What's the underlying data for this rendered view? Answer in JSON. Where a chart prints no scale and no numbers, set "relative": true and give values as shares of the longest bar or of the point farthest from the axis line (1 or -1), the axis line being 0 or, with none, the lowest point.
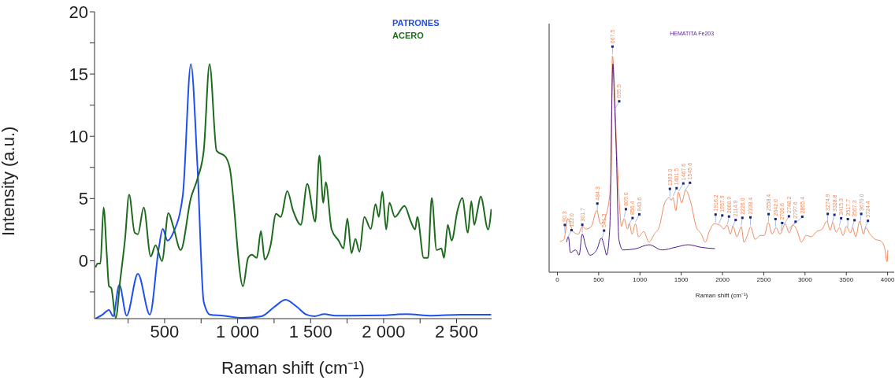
{
  "chart_data": [
    {
      "type": "line",
      "xlabel": "Raman shift (cm⁻¹)",
      "ylabel": "Intensity (a.u.)",
      "xlim": [
        20,
        2740
      ],
      "ylim": [
        -4.65,
        20
      ],
      "xticks": [
        {
          "value": 250,
          "label": null
        },
        500,
        {
          "value": 750,
          "label": null
        },
        {
          "value": 1000,
          "label": "1 000"
        },
        {
          "value": 1250,
          "label": null
        },
        {
          "value": 1500,
          "label": "1 500"
        },
        {
          "value": 1750,
          "label": null
        },
        {
          "value": 2000,
          "label": "2 000"
        },
        {
          "value": 2250,
          "label": null
        },
        {
          "value": 2500,
          "label": "2 500"
        }
      ],
      "yticks": [
        {
          "value": -2.5,
          "label": null
        },
        0,
        {
          "value": 2.5,
          "label": null
        },
        5,
        {
          "value": 7.5,
          "label": null
        },
        10,
        {
          "value": 12.5,
          "label": null
        },
        15,
        {
          "value": 17.5,
          "label": null
        },
        20
      ],
      "legend": "top right",
      "grid": false,
      "series": [
        {
          "name": "PATRONES",
          "color": "#1f4ff0",
          "x": [
            27,
            75,
            119,
            147,
            190,
            240,
            317,
            399,
            460,
            487,
            520,
            559,
            625,
            680,
            724,
            768,
            812,
            900,
            1032,
            1164,
            1252,
            1329,
            1406,
            1472,
            1527,
            1593,
            1670,
            2000,
            2154,
            2330,
            2528,
            2737
          ],
          "values": [
            -4.64,
            -4.33,
            -3.95,
            -4.46,
            -1.93,
            -4.41,
            -1.04,
            -4.33,
            1.0,
            2.56,
            1.62,
            2.25,
            5.3,
            15.8,
            7.8,
            -3.3,
            -4.33,
            -4.41,
            -4.59,
            -4.46,
            -3.7,
            -3.14,
            -3.7,
            -4.33,
            -4.46,
            -4.28,
            -4.41,
            -4.38,
            -4.28,
            -4.41,
            -4.33,
            -4.33
          ]
        },
        {
          "name": "ACERO",
          "color": "#1e6b1e",
          "x": [
            27,
            42,
            60,
            82,
            104,
            119,
            134,
            165,
            196,
            229,
            257,
            295,
            317,
            357,
            405,
            438,
            482,
            526,
            559,
            610,
            680,
            724,
            768,
            808,
            856,
            918,
            944,
            1037,
            1072,
            1098,
            1131,
            1160,
            1186,
            1226,
            1263,
            1296,
            1340,
            1380,
            1433,
            1477,
            1532,
            1560,
            1587,
            1604,
            1644,
            1692,
            1725,
            1752,
            1780,
            1807,
            1835,
            1868,
            1912,
            1945,
            1967,
            1992,
            2018,
            2040,
            2077,
            2143,
            2187,
            2216,
            2231,
            2275,
            2304,
            2330,
            2363,
            2396,
            2414,
            2440,
            2466,
            2506,
            2539,
            2577,
            2601,
            2621,
            2643,
            2665,
            2716,
            2738
          ],
          "values": [
            -0.53,
            -0.23,
            -0.23,
            4.28,
            0.48,
            -2.05,
            -2.18,
            -4.59,
            -1.55,
            1.75,
            5.3,
            2.25,
            2.13,
            4.28,
            0.35,
            1.24,
            -0.03,
            3.83,
            2.76,
            0.86,
            5.04,
            6.56,
            8.84,
            15.8,
            8.84,
            8.34,
            7.58,
            -2.05,
            0.23,
            0.48,
            0.23,
            2.38,
            0.1,
            1.24,
            3.78,
            3.52,
            5.6,
            4.03,
            2.89,
            6.18,
            3.14,
            8.46,
            4.66,
            6.31,
            2.51,
            1.62,
            0.99,
            3.4,
            0.61,
            1.75,
            0.73,
            3.52,
            2.56,
            4.54,
            3.52,
            5.55,
            2.51,
            4.66,
            3.52,
            4.41,
            3.14,
            2.51,
            3.52,
            0.23,
            0.23,
            5.04,
            0.86,
            0.99,
            0.23,
            2.89,
            1.62,
            4.03,
            5.04,
            2.25,
            4.79,
            2.89,
            4.03,
            5.17,
            2.51,
            4.15
          ]
        }
      ]
    },
    {
      "type": "line",
      "xlabel": "Raman shift (cm⁻¹)",
      "relative": true,
      "tick_labels": "x",
      "xlim": [
        -100,
        4080
      ],
      "xticks": [
        0,
        500,
        1000,
        1500,
        2000,
        2500,
        3000,
        3500,
        4000
      ],
      "legend": "top",
      "grid": false,
      "series": [
        {
          "color": "#f08a5d",
          "x": [
            32,
            79,
            127,
            190,
            254,
            301,
            349,
            412,
            476,
            523,
            587,
            650,
            666,
            729,
            777,
            808,
            850,
            872,
            904,
            945,
            983,
            1046,
            1110,
            1173,
            1236,
            1300,
            1357,
            1379,
            1401,
            1436,
            1465,
            1506,
            1553,
            1617,
            1680,
            1744,
            1791,
            1839,
            1902,
            1968,
            2016,
            2057,
            2095,
            2127,
            2174,
            2228,
            2260,
            2301,
            2339,
            2396,
            2459,
            2506,
            2554,
            2601,
            2649,
            2696,
            2760,
            2807,
            2855,
            2902,
            2956,
            3013,
            3076,
            3139,
            3203,
            3266,
            3304,
            3336,
            3377,
            3418,
            3462,
            3500,
            3551,
            3576,
            3614,
            3662,
            3709,
            3734,
            3788,
            3852,
            3915,
            3962,
            3994,
            4003
          ],
          "values": [
            0.142,
            0.152,
            0.248,
            0.188,
            0.176,
            0.212,
            0.2,
            0.212,
            0.285,
            0.224,
            0.261,
            0.43,
            1.0,
            0.479,
            0.212,
            0.248,
            0.2,
            0.224,
            0.176,
            0.224,
            0.164,
            0.188,
            0.139,
            0.176,
            0.212,
            0.321,
            0.345,
            0.333,
            0.345,
            0.285,
            0.37,
            0.321,
            0.379,
            0.321,
            0.212,
            0.176,
            0.139,
            0.188,
            0.224,
            0.218,
            0.2,
            0.218,
            0.176,
            0.212,
            0.164,
            0.21,
            0.139,
            0.17,
            0.21,
            0.152,
            0.17,
            0.17,
            0.23,
            0.176,
            0.206,
            0.176,
            0.224,
            0.182,
            0.218,
            0.194,
            0.139,
            0.17,
            0.164,
            0.188,
            0.198,
            0.236,
            0.194,
            0.23,
            0.185,
            0.206,
            0.17,
            0.212,
            0.182,
            0.206,
            0.164,
            0.236,
            0.176,
            0.206,
            0.176,
            0.152,
            0.145,
            0.115,
            0.048,
            0.103
          ]
        },
        {
          "name": "HEMATITA Fe203",
          "color": "#4b1a8c",
          "x": [
            111,
            133,
            158,
            222,
            263,
            301,
            343,
            396,
            476,
            533,
            571,
            596,
            634,
            672,
            691,
            713,
            745,
            793,
            951,
            1110,
            1268,
            1427,
            1585,
            1744,
            1908
          ],
          "values": [
            0.139,
            0.164,
            0.091,
            0.103,
            0.079,
            0.176,
            0.121,
            0.079,
            0.103,
            0.158,
            0.115,
            0.079,
            0.2,
            0.964,
            0.794,
            0.564,
            0.152,
            0.103,
            0.109,
            0.127,
            0.103,
            0.115,
            0.127,
            0.115,
            0.109
          ]
        }
      ],
      "annotations": [
        {
          "text": "90.3",
          "x": 90.3,
          "y": 0.175
        },
        {
          "text": "122.0",
          "x": 122.0,
          "y": 0.151
        },
        {
          "text": "301.7",
          "x": 301.7,
          "y": 0.176
        },
        {
          "text": "484.3",
          "x": 484.3,
          "y": 0.274
        },
        {
          "text": "541.3",
          "x": 541.3,
          "y": 0.149
        },
        {
          "text": "667.5",
          "x": 667.5,
          "y": 1.0
        },
        {
          "text": "695.5",
          "x": 695.5,
          "y": 0.747
        },
        {
          "text": "809.0",
          "x": 809.0,
          "y": 0.248
        },
        {
          "text": "856.4",
          "x": 856.4,
          "y": 0.207
        },
        {
          "text": "943.6",
          "x": 943.6,
          "y": 0.224
        },
        {
          "text": "1363.0",
          "x": 1363.0,
          "y": 0.342
        },
        {
          "text": "1401.5",
          "x": 1401.5,
          "y": 0.345
        },
        {
          "text": "1467.6",
          "x": 1467.6,
          "y": 0.367
        },
        {
          "text": "1545.6",
          "x": 1545.6,
          "y": 0.37
        },
        {
          "text": "1916.2",
          "x": 1916.2,
          "y": 0.223
        },
        {
          "text": "1957.9",
          "x": 1957.9,
          "y": 0.219
        },
        {
          "text": "2060.9",
          "x": 2060.9,
          "y": 0.214
        },
        {
          "text": "2114.9",
          "x": 2114.9,
          "y": 0.198
        },
        {
          "text": "2226.0",
          "x": 2226.0,
          "y": 0.208
        },
        {
          "text": "2338.4",
          "x": 2338.4,
          "y": 0.21
        },
        {
          "text": "2558.4",
          "x": 2558.4,
          "y": 0.225
        },
        {
          "text": "2642.0",
          "x": 2642.0,
          "y": 0.202
        },
        {
          "text": "2706.6",
          "x": 2706.6,
          "y": 0.184
        },
        {
          "text": "2748.2",
          "x": 2748.2,
          "y": 0.215
        },
        {
          "text": "2797.6",
          "x": 2797.6,
          "y": 0.19
        },
        {
          "text": "2865.4",
          "x": 2865.4,
          "y": 0.213
        },
        {
          "text": "3274.9",
          "x": 3274.9,
          "y": 0.226
        },
        {
          "text": "3328.8",
          "x": 3328.8,
          "y": 0.222
        },
        {
          "text": "3415.3",
          "x": 3415.3,
          "y": 0.206
        },
        {
          "text": "3517.7",
          "x": 3517.7,
          "y": 0.202
        },
        {
          "text": "3567.3",
          "x": 3567.3,
          "y": 0.197
        },
        {
          "text": "3670.0",
          "x": 3670.0,
          "y": 0.226
        },
        {
          "text": "3724.4",
          "x": 3724.4,
          "y": 0.194
        }
      ]
    }
  ]
}
